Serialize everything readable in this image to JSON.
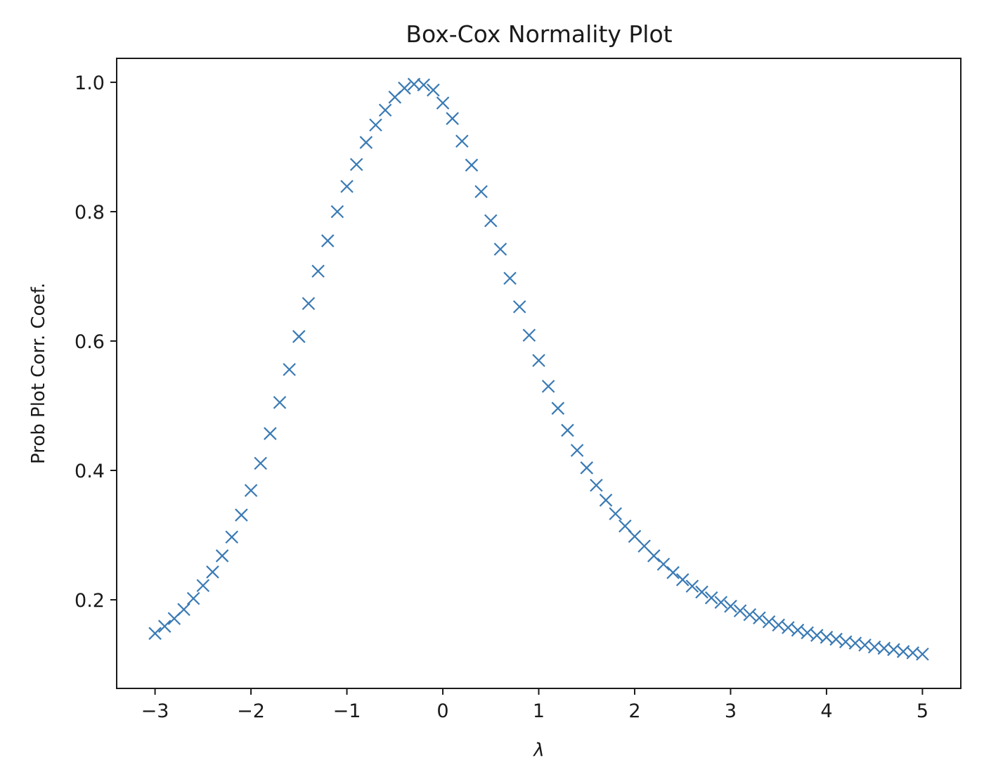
{
  "chart_data": {
    "type": "scatter",
    "title": "Box-Cox Normality Plot",
    "xlabel": "λ",
    "ylabel": "Prob Plot Corr. Coef.",
    "xlim": [
      -3.4,
      5.4
    ],
    "ylim": [
      0.063,
      1.037
    ],
    "grid": false,
    "marker": "x",
    "colors": {
      "series": "#3a7ab4",
      "axes": "#1a1a1a"
    },
    "x_ticks": [
      {
        "value": -3,
        "label": "−3"
      },
      {
        "value": -2,
        "label": "−2"
      },
      {
        "value": -1,
        "label": "−1"
      },
      {
        "value": 0,
        "label": "0"
      },
      {
        "value": 1,
        "label": "1"
      },
      {
        "value": 2,
        "label": "2"
      },
      {
        "value": 3,
        "label": "3"
      },
      {
        "value": 4,
        "label": "4"
      },
      {
        "value": 5,
        "label": "5"
      }
    ],
    "y_ticks": [
      {
        "value": 0.2,
        "label": "0.2"
      },
      {
        "value": 0.4,
        "label": "0.4"
      },
      {
        "value": 0.6,
        "label": "0.6"
      },
      {
        "value": 0.8,
        "label": "0.8"
      },
      {
        "value": 1.0,
        "label": "1.0"
      }
    ],
    "series": [
      {
        "x": [
          -3.0,
          -2.9,
          -2.8,
          -2.7,
          -2.6,
          -2.5,
          -2.4,
          -2.3,
          -2.2,
          -2.1,
          -2.0,
          -1.9,
          -1.8,
          -1.7,
          -1.6,
          -1.5,
          -1.4,
          -1.3,
          -1.2,
          -1.1,
          -1.0,
          -0.9,
          -0.8,
          -0.7,
          -0.6,
          -0.5,
          -0.4,
          -0.3,
          -0.2,
          -0.1,
          0.0,
          0.1,
          0.2,
          0.3,
          0.4,
          0.5,
          0.6,
          0.7,
          0.8,
          0.9,
          1.0,
          1.1,
          1.2,
          1.3,
          1.4,
          1.5,
          1.6,
          1.7,
          1.8,
          1.9,
          2.0,
          2.1,
          2.2,
          2.3,
          2.4,
          2.5,
          2.6,
          2.7,
          2.8,
          2.9,
          3.0,
          3.1,
          3.2,
          3.3,
          3.4,
          3.5,
          3.6,
          3.7,
          3.8,
          3.9,
          4.0,
          4.1,
          4.2,
          4.3,
          4.4,
          4.5,
          4.6,
          4.7,
          4.8,
          4.9,
          5.0
        ],
        "y": [
          0.148,
          0.159,
          0.171,
          0.185,
          0.202,
          0.222,
          0.243,
          0.268,
          0.297,
          0.331,
          0.369,
          0.411,
          0.457,
          0.505,
          0.556,
          0.607,
          0.658,
          0.708,
          0.755,
          0.8,
          0.839,
          0.873,
          0.907,
          0.934,
          0.957,
          0.977,
          0.991,
          0.997,
          0.996,
          0.988,
          0.968,
          0.944,
          0.909,
          0.872,
          0.831,
          0.786,
          0.742,
          0.697,
          0.653,
          0.609,
          0.57,
          0.53,
          0.496,
          0.462,
          0.431,
          0.404,
          0.377,
          0.354,
          0.333,
          0.314,
          0.298,
          0.283,
          0.268,
          0.255,
          0.242,
          0.231,
          0.221,
          0.212,
          0.203,
          0.196,
          0.19,
          0.183,
          0.177,
          0.172,
          0.166,
          0.161,
          0.157,
          0.153,
          0.149,
          0.145,
          0.142,
          0.139,
          0.135,
          0.133,
          0.13,
          0.127,
          0.125,
          0.123,
          0.12,
          0.118,
          0.116
        ]
      }
    ]
  }
}
